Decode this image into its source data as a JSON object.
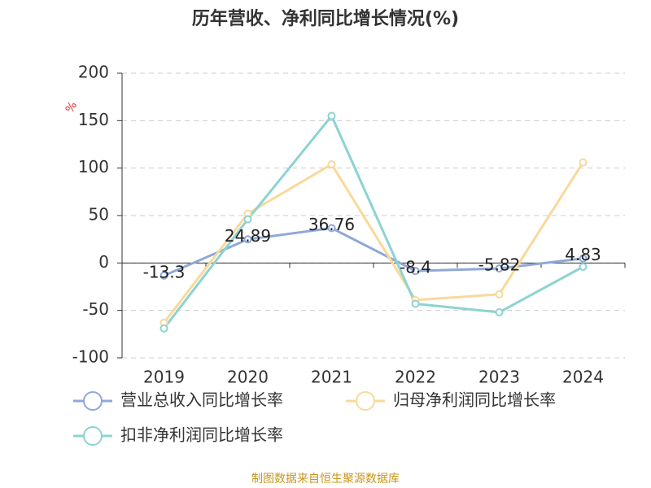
{
  "chart_data": {
    "type": "line",
    "title": "历年营收、净利同比增长情况(%)",
    "y_label": "%",
    "categories": [
      "2019",
      "2020",
      "2021",
      "2022",
      "2023",
      "2024"
    ],
    "series": [
      {
        "name": "营业总收入同比增长率",
        "color": "#8fa8d8",
        "values": [
          -13.3,
          24.89,
          36.76,
          -8.4,
          -5.82,
          4.83
        ]
      },
      {
        "name": "归母净利润同比增长率",
        "color": "#f9d99a",
        "values": [
          -63,
          52,
          104,
          -39,
          -33,
          106
        ]
      },
      {
        "name": "扣非净利润同比增长率",
        "color": "#8dd3d3",
        "values": [
          -69,
          46,
          155,
          -43,
          -52,
          -4
        ]
      }
    ],
    "ylim": [
      -100,
      200
    ],
    "yticks": [
      -100,
      -50,
      0,
      50,
      100,
      150,
      200
    ],
    "grid": true,
    "footer": "制图数据来自恒生聚源数据库"
  }
}
